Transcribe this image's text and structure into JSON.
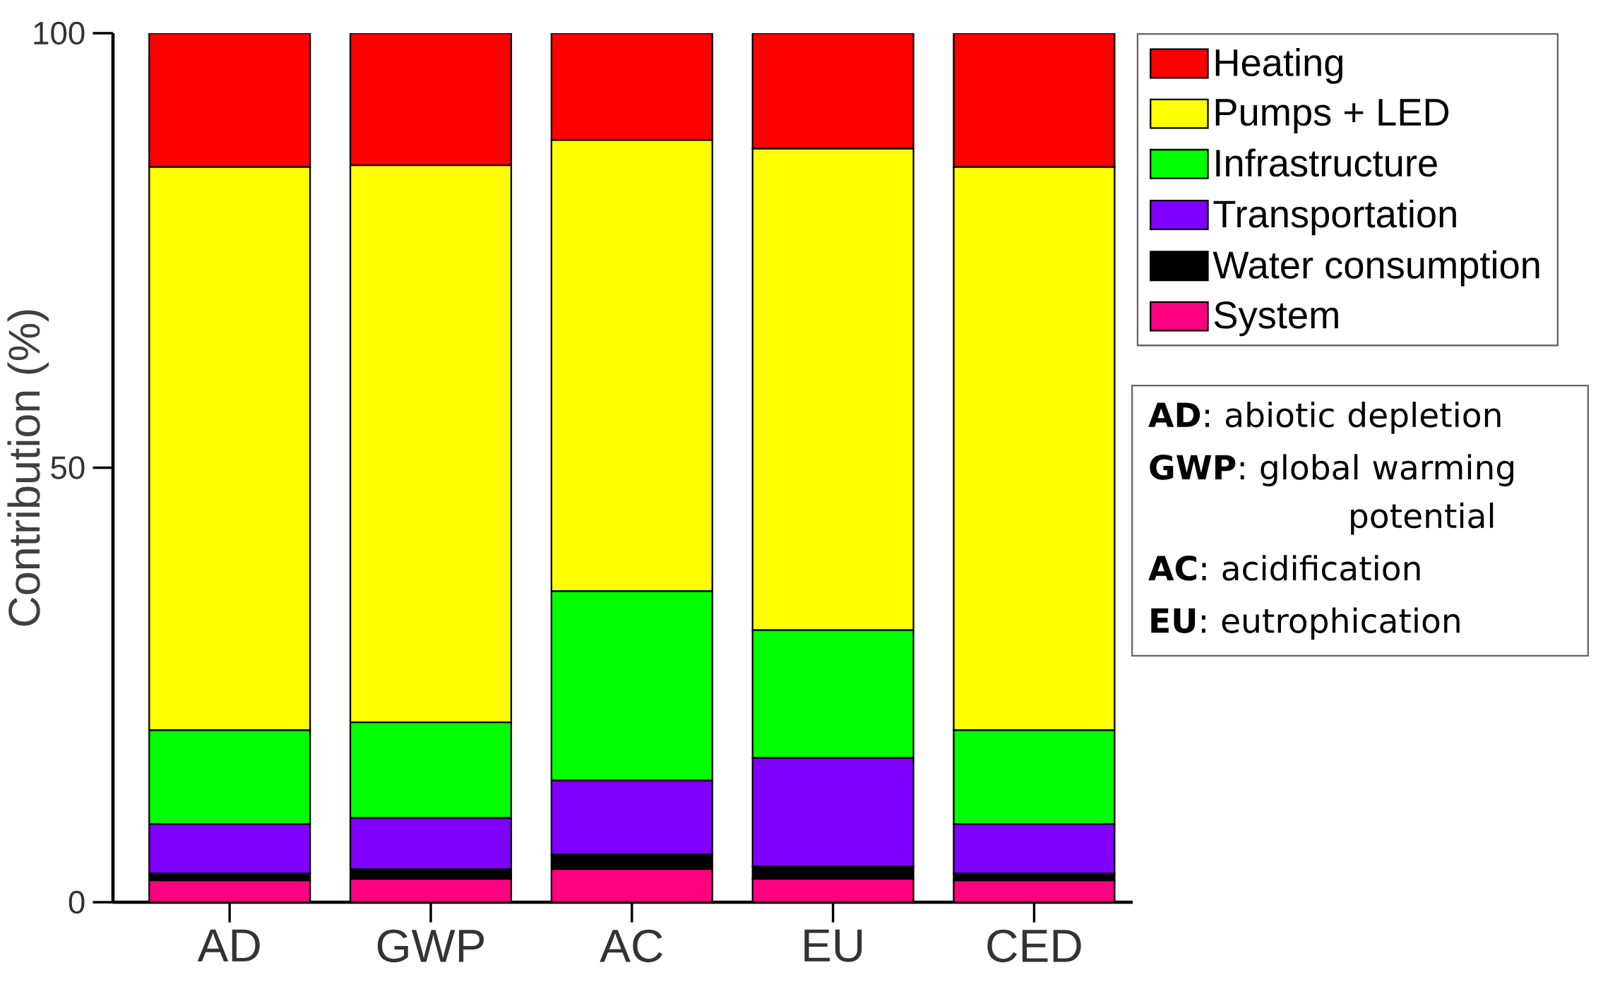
{
  "chart_data": {
    "type": "bar",
    "stacked": true,
    "ylabel": "Contribution (%)",
    "categories": [
      "AD",
      "GWP",
      "AC",
      "EU",
      "CED"
    ],
    "series": [
      {
        "name": "System",
        "color": "#ff0080",
        "values": [
          2.5,
          2.7,
          3.8,
          2.7,
          2.5
        ]
      },
      {
        "name": "Water consumption",
        "color": "#000000",
        "values": [
          0.8,
          1.1,
          1.7,
          1.4,
          0.8
        ]
      },
      {
        "name": "Transportation",
        "color": "#8000ff",
        "values": [
          5.7,
          5.9,
          8.5,
          12.5,
          5.7
        ]
      },
      {
        "name": "Infrastructure",
        "color": "#00ff00",
        "values": [
          10.8,
          11.0,
          21.8,
          14.7,
          10.8
        ]
      },
      {
        "name": "Pumps + LED",
        "color": "#ffff00",
        "values": [
          64.8,
          64.1,
          51.9,
          55.4,
          64.8
        ]
      },
      {
        "name": "Heating",
        "color": "#ff0000",
        "values": [
          15.4,
          15.2,
          12.3,
          13.3,
          15.4
        ]
      }
    ],
    "ylim": [
      0,
      100
    ],
    "yticks": [
      0,
      50,
      100
    ],
    "grid": false,
    "legend": "right",
    "annotations": [
      "**AD**: abiotic depletion",
      "**GWP**: global warming potential",
      "**AC**: acidification",
      "**EU**: eutrophication"
    ]
  }
}
